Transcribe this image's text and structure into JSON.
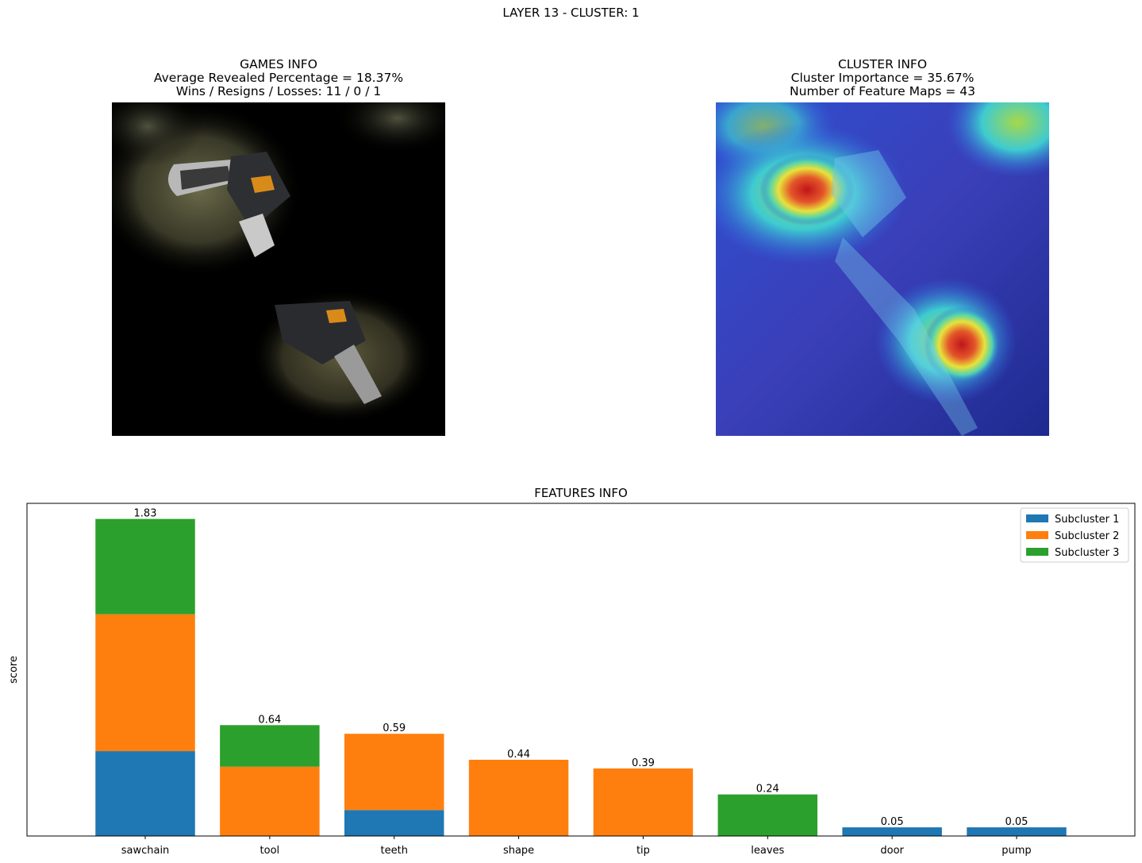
{
  "suptitle": "LAYER 13 - CLUSTER: 1",
  "games_info": {
    "title": "GAMES INFO",
    "line1": "Average Revealed Percentage = 18.37%",
    "line2": "Wins / Resigns / Losses: 11 / 0 / 1"
  },
  "cluster_info": {
    "title": "CLUSTER INFO",
    "line1": "Cluster Importance = 35.67%",
    "line2": "Number of Feature Maps = 43"
  },
  "chart_data": {
    "type": "bar",
    "stacked": true,
    "title": "FEATURES INFO",
    "xlabel": "",
    "ylabel": "score",
    "ylim": [
      0,
      1.92
    ],
    "categories": [
      "sawchain",
      "tool",
      "teeth",
      "shape",
      "tip",
      "leaves",
      "door",
      "pump"
    ],
    "totals": [
      1.83,
      0.64,
      0.59,
      0.44,
      0.39,
      0.24,
      0.05,
      0.05
    ],
    "series": [
      {
        "name": "Subcluster 1",
        "color": "#1f77b4",
        "values": [
          0.49,
          0.0,
          0.15,
          0.0,
          0.0,
          0.0,
          0.05,
          0.05
        ]
      },
      {
        "name": "Subcluster 2",
        "color": "#ff7f0e",
        "values": [
          0.79,
          0.4,
          0.44,
          0.44,
          0.39,
          0.0,
          0.0,
          0.0
        ]
      },
      {
        "name": "Subcluster 3",
        "color": "#2ca02c",
        "values": [
          0.55,
          0.24,
          0.0,
          0.0,
          0.0,
          0.24,
          0.0,
          0.0
        ]
      }
    ],
    "legend_position": "upper-right",
    "grid": false
  }
}
